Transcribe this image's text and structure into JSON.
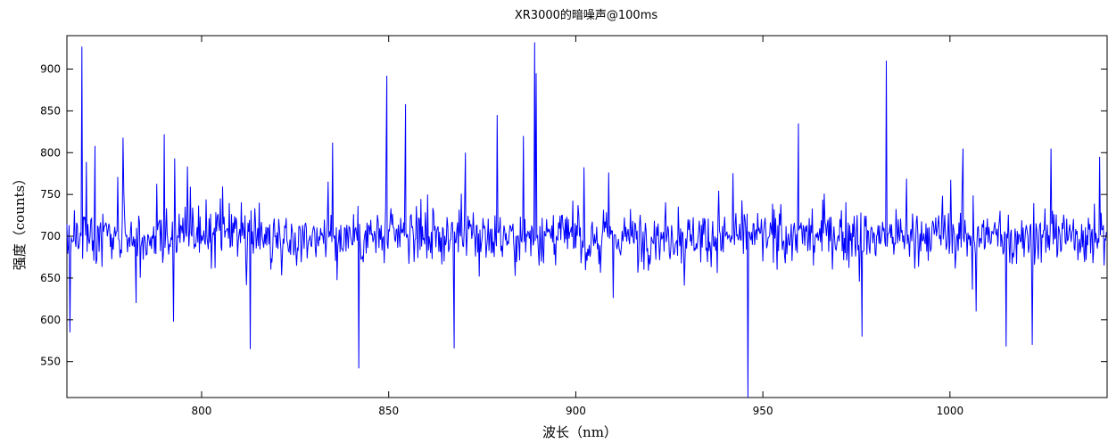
{
  "chart_data": {
    "type": "line",
    "title": "XR3000的暗噪声@100ms",
    "xlabel": "波长（nm）",
    "ylabel": "强度（counts）",
    "xlim": [
      764,
      1042
    ],
    "ylim": [
      507,
      940
    ],
    "x_ticks": [
      800,
      850,
      900,
      950,
      1000
    ],
    "y_ticks": [
      550,
      600,
      650,
      700,
      750,
      800,
      850,
      900
    ],
    "grid": false,
    "legend": "none",
    "series": [
      {
        "color": "#0000ff",
        "baseline": 700,
        "noise_amplitude": 35,
        "x_step": 0.2,
        "notable_points": [
          {
            "x": 764.8,
            "y": 585
          },
          {
            "x": 768.0,
            "y": 927
          },
          {
            "x": 771.5,
            "y": 808
          },
          {
            "x": 779.0,
            "y": 818
          },
          {
            "x": 782.5,
            "y": 620
          },
          {
            "x": 790.0,
            "y": 822
          },
          {
            "x": 792.5,
            "y": 598
          },
          {
            "x": 813.0,
            "y": 565
          },
          {
            "x": 818.5,
            "y": 660
          },
          {
            "x": 835.0,
            "y": 812
          },
          {
            "x": 842.0,
            "y": 542
          },
          {
            "x": 849.5,
            "y": 892
          },
          {
            "x": 854.5,
            "y": 858
          },
          {
            "x": 867.5,
            "y": 566
          },
          {
            "x": 870.5,
            "y": 800
          },
          {
            "x": 879.0,
            "y": 845
          },
          {
            "x": 886.0,
            "y": 820
          },
          {
            "x": 889.0,
            "y": 932
          },
          {
            "x": 889.4,
            "y": 895
          },
          {
            "x": 910.0,
            "y": 626
          },
          {
            "x": 929.0,
            "y": 641
          },
          {
            "x": 946.0,
            "y": 507
          },
          {
            "x": 959.5,
            "y": 835
          },
          {
            "x": 963.5,
            "y": 665
          },
          {
            "x": 976.5,
            "y": 580
          },
          {
            "x": 983.0,
            "y": 910
          },
          {
            "x": 1003.5,
            "y": 805
          },
          {
            "x": 1007.0,
            "y": 610
          },
          {
            "x": 1015.0,
            "y": 568
          },
          {
            "x": 1022.0,
            "y": 570
          },
          {
            "x": 1027.0,
            "y": 805
          },
          {
            "x": 1040.0,
            "y": 795
          }
        ]
      }
    ]
  }
}
